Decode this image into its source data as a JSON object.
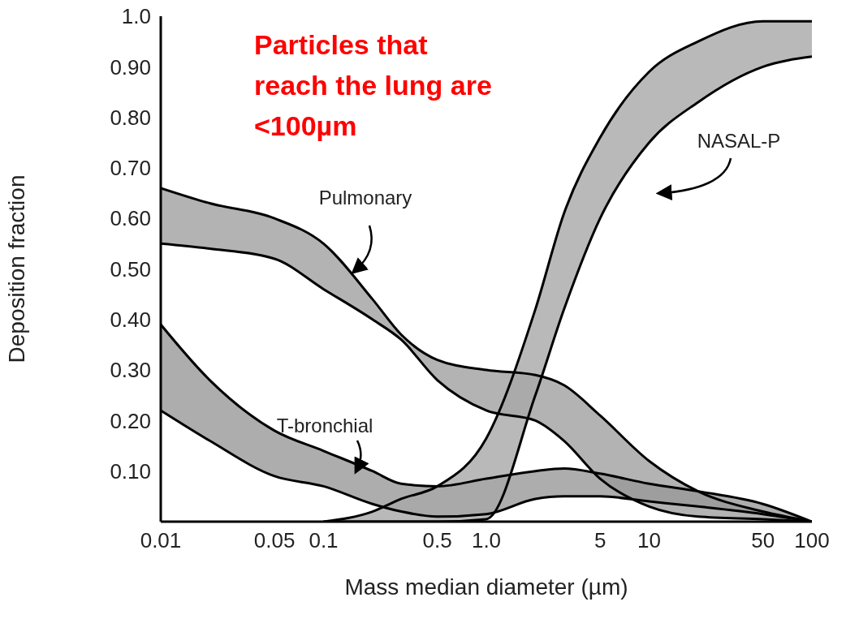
{
  "chart_data": {
    "type": "area",
    "xlabel": "Mass median diameter (µm)",
    "ylabel": "Deposition fraction",
    "annotations": [
      "Particles that reach the lung are <100µm"
    ],
    "log": "x",
    "grid": false,
    "x": [
      0.01,
      0.02,
      0.05,
      0.1,
      0.2,
      0.3,
      0.5,
      1,
      2,
      3,
      5,
      10,
      20,
      50,
      100
    ],
    "xlim": [
      0.01,
      100
    ],
    "xticks": [
      0.01,
      0.05,
      0.1,
      0.5,
      {
        "value": 1,
        "label": "1.0"
      },
      5,
      10,
      50,
      100
    ],
    "ylim": [
      0,
      1
    ],
    "yticks": [
      {
        "value": 0.1,
        "label": "0.10"
      },
      {
        "value": 0.2,
        "label": "0.20"
      },
      {
        "value": 0.3,
        "label": "0.30"
      },
      {
        "value": 0.4,
        "label": "0.40"
      },
      {
        "value": 0.5,
        "label": "0.50"
      },
      {
        "value": 0.6,
        "label": "0.60"
      },
      {
        "value": 0.7,
        "label": "0.70"
      },
      {
        "value": 0.8,
        "label": "0.80"
      },
      {
        "value": 0.9,
        "label": "0.90"
      },
      {
        "value": 1,
        "label": "1.0"
      }
    ],
    "series": [
      {
        "name": "Pulmonary",
        "color": "#a0a0a0",
        "values": [
          0.66,
          0.63,
          0.6,
          0.55,
          0.44,
          0.37,
          0.32,
          0.3,
          0.29,
          0.27,
          0.21,
          0.12,
          0.06,
          0.02,
          0
        ]
      },
      {
        "type": "line",
        "color": "#000000",
        "values": [
          0.55,
          0.54,
          0.52,
          0.46,
          0.4,
          0.36,
          0.28,
          0.22,
          0.2,
          0.16,
          0.085,
          0.03,
          0.01,
          0.005,
          0
        ]
      },
      {
        "name": "T-bronchial",
        "color": "#989898",
        "values": [
          0.39,
          0.28,
          0.18,
          0.14,
          0.1,
          0.075,
          0.07,
          0.085,
          0.1,
          0.105,
          0.095,
          0.075,
          0.06,
          0.035,
          0
        ]
      },
      {
        "type": "line",
        "color": "#000000",
        "values": [
          0.22,
          0.16,
          0.09,
          0.07,
          0.035,
          0.02,
          0.01,
          0.015,
          0.045,
          0.05,
          0.05,
          0.04,
          0.03,
          0.015,
          0
        ]
      },
      {
        "name": "NASAL-P",
        "color": "#a8a8a8",
        "values": [
          null,
          null,
          null,
          0,
          0.02,
          0.045,
          0.07,
          0.165,
          0.42,
          0.61,
          0.76,
          0.89,
          0.95,
          0.99,
          0.99
        ]
      },
      {
        "type": "line",
        "color": "#000000",
        "values": [
          null,
          null,
          null,
          0,
          0,
          0,
          0,
          0.005,
          0.25,
          0.42,
          0.6,
          0.75,
          0.83,
          0.9,
          0.92
        ]
      }
    ]
  }
}
